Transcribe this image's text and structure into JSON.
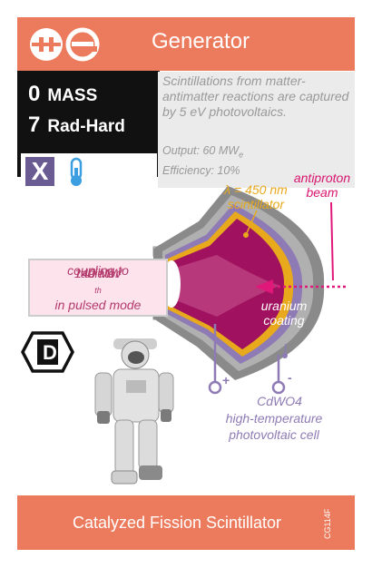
{
  "header": {
    "title": "Generator",
    "logo_icons": [
      "pause-circle-icon",
      "e-circle-icon"
    ]
  },
  "stats": {
    "mass_value": "0",
    "mass_label": "MASS",
    "radhard_value": "7",
    "radhard_label": "Rad-Hard",
    "type_letter": "X",
    "thermometer": "thermometer-icon"
  },
  "description": {
    "text": "Scintillations from matter-antimatter reactions are captured by 5 eV photovoltaics.",
    "output": "Output: 60 MW",
    "output_sub": "e",
    "efficiency": "Efficiency: 10%"
  },
  "labels": {
    "scintillator_1": "λ = 450 nm",
    "scintillator_2": "scintillator",
    "beam_1": "antiproton",
    "beam_2": "beam",
    "coupling_1": "coupling to",
    "coupling_2a": "140 MW",
    "coupling_2sub": "th",
    "coupling_2b": " radiator",
    "coupling_3": "in pulsed mode",
    "uranium_1": "uranium",
    "uranium_2": "coating",
    "cdwo4": "CdWO4",
    "pv_1": "high-temperature",
    "pv_2": "photovoltaic cell",
    "plus": "+",
    "minus": "-",
    "d_badge": "D"
  },
  "footer": {
    "title": "Catalyzed Fission Scintillator",
    "code": "CG114F"
  },
  "colors": {
    "accent": "#ec7a5c",
    "magenta": "#a0125f",
    "gold": "#e8a91c",
    "purple": "#8e7bb5",
    "gray": "#808080"
  }
}
